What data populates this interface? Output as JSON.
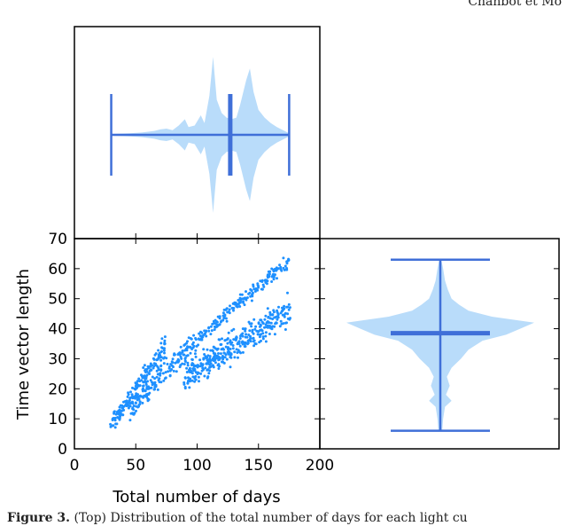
{
  "header": {
    "text": "Chanbot et Mo"
  },
  "caption": {
    "label": "Figure 3.",
    "text": "(Top) Distribution of the total number of days for each light cu"
  },
  "colors": {
    "point": "#1e90ff",
    "violin_fill": "#b9dcfa",
    "violin_line": "#3f6fd8"
  },
  "chart_data": [
    {
      "panel": "top-marginal",
      "type": "violin",
      "orientation": "horizontal",
      "variable": "Total number of days",
      "min": 30,
      "max": 175,
      "mean": 127,
      "xlim": [
        0,
        200
      ],
      "density_profile": [
        [
          30,
          0.01
        ],
        [
          45,
          0.02
        ],
        [
          55,
          0.03
        ],
        [
          60,
          0.04
        ],
        [
          65,
          0.05
        ],
        [
          70,
          0.07
        ],
        [
          75,
          0.08
        ],
        [
          80,
          0.06
        ],
        [
          85,
          0.12
        ],
        [
          90,
          0.2
        ],
        [
          93,
          0.1
        ],
        [
          98,
          0.12
        ],
        [
          103,
          0.25
        ],
        [
          106,
          0.15
        ],
        [
          110,
          0.5
        ],
        [
          113,
          1.0
        ],
        [
          116,
          0.45
        ],
        [
          120,
          0.28
        ],
        [
          124,
          0.22
        ],
        [
          128,
          0.2
        ],
        [
          132,
          0.22
        ],
        [
          135,
          0.38
        ],
        [
          140,
          0.7
        ],
        [
          143,
          0.85
        ],
        [
          146,
          0.55
        ],
        [
          150,
          0.32
        ],
        [
          155,
          0.22
        ],
        [
          160,
          0.15
        ],
        [
          165,
          0.1
        ],
        [
          170,
          0.06
        ],
        [
          175,
          0.02
        ]
      ]
    },
    {
      "panel": "scatter",
      "type": "scatter",
      "xlabel": "Total number of days",
      "ylabel": "Time vector length",
      "xlim": [
        0,
        200
      ],
      "ylim": [
        0,
        70
      ],
      "xticks": [
        "0",
        "50",
        "100",
        "150",
        "200"
      ],
      "yticks": [
        "0",
        "10",
        "20",
        "30",
        "40",
        "50",
        "60",
        "70"
      ],
      "bands": [
        {
          "x0": 30,
          "x1": 75,
          "y0": 8,
          "y1": 34,
          "spread": 3
        },
        {
          "x0": 45,
          "x1": 100,
          "y0": 13,
          "y1": 36,
          "spread": 3
        },
        {
          "x0": 90,
          "x1": 175,
          "y0": 24,
          "y1": 46,
          "spread": 4
        },
        {
          "x0": 100,
          "x1": 175,
          "y0": 36,
          "y1": 63,
          "spread": 2
        }
      ],
      "point_count": 900
    },
    {
      "panel": "right-marginal",
      "type": "violin",
      "orientation": "vertical",
      "variable": "Time vector length",
      "min": 6,
      "max": 63,
      "mean": 38.5,
      "ylim": [
        0,
        70
      ],
      "density_profile": [
        [
          6,
          0.02
        ],
        [
          10,
          0.03
        ],
        [
          14,
          0.05
        ],
        [
          16,
          0.12
        ],
        [
          18,
          0.06
        ],
        [
          21,
          0.1
        ],
        [
          24,
          0.07
        ],
        [
          27,
          0.12
        ],
        [
          30,
          0.22
        ],
        [
          33,
          0.3
        ],
        [
          36,
          0.45
        ],
        [
          38,
          0.7
        ],
        [
          40,
          0.85
        ],
        [
          42,
          1.0
        ],
        [
          44,
          0.55
        ],
        [
          46,
          0.3
        ],
        [
          48,
          0.2
        ],
        [
          50,
          0.12
        ],
        [
          53,
          0.08
        ],
        [
          56,
          0.05
        ],
        [
          60,
          0.03
        ],
        [
          63,
          0.01
        ]
      ]
    }
  ]
}
